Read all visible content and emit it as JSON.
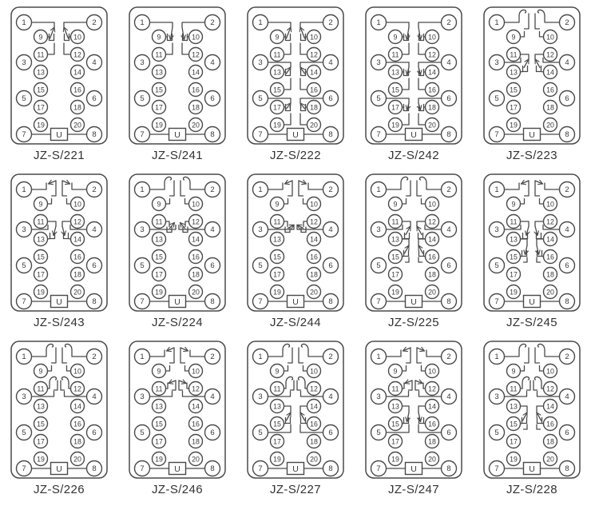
{
  "colors": {
    "line": "#4a4a4a",
    "text": "#3a3a3a",
    "background": "#ffffff"
  },
  "grid": {
    "rows": 3,
    "columns": 5
  },
  "terminals": {
    "outer_left": [
      "1",
      "3",
      "5",
      "7"
    ],
    "outer_right": [
      "2",
      "4",
      "6",
      "8"
    ],
    "inner_left": [
      "9",
      "11",
      "13",
      "15",
      "17",
      "19"
    ],
    "inner_right": [
      "10",
      "12",
      "14",
      "16",
      "18",
      "20"
    ],
    "power_box": "U"
  },
  "contact_types": {
    "no": "open-contact",
    "nc": "closed-contact"
  },
  "diagrams": [
    {
      "model": "JZ-S/221",
      "contacts": [
        {
          "slot": "gA",
          "type": "no"
        }
      ]
    },
    {
      "model": "JZ-S/241",
      "contacts": [
        {
          "slot": "gA",
          "type": "nc"
        }
      ]
    },
    {
      "model": "JZ-S/222",
      "contacts": [
        {
          "slot": "gA",
          "type": "no"
        },
        {
          "slot": "gB",
          "type": "no"
        },
        {
          "slot": "gC",
          "type": "no"
        }
      ]
    },
    {
      "model": "JZ-S/242",
      "contacts": [
        {
          "slot": "gA",
          "type": "nc"
        },
        {
          "slot": "gB",
          "type": "nc"
        },
        {
          "slot": "gC",
          "type": "nc"
        }
      ]
    },
    {
      "model": "JZ-S/223",
      "contacts": [
        {
          "slot": "T1",
          "type": "no"
        },
        {
          "slot": "M1a",
          "type": "no"
        }
      ]
    },
    {
      "model": "JZ-S/243",
      "contacts": [
        {
          "slot": "T1",
          "type": "nc"
        },
        {
          "slot": "M1a",
          "type": "nc"
        }
      ]
    },
    {
      "model": "JZ-S/224",
      "contacts": [
        {
          "slot": "T1",
          "type": "no"
        },
        {
          "slot": "M1b",
          "type": "no"
        }
      ]
    },
    {
      "model": "JZ-S/244",
      "contacts": [
        {
          "slot": "T1",
          "type": "nc"
        },
        {
          "slot": "M1b",
          "type": "nc"
        }
      ]
    },
    {
      "model": "JZ-S/225",
      "contacts": [
        {
          "slot": "T1",
          "type": "no"
        },
        {
          "slot": "M1a",
          "type": "no"
        },
        {
          "slot": "M2a",
          "type": "no"
        }
      ]
    },
    {
      "model": "JZ-S/245",
      "contacts": [
        {
          "slot": "T1",
          "type": "nc"
        },
        {
          "slot": "M1a",
          "type": "nc"
        },
        {
          "slot": "M2a",
          "type": "nc"
        }
      ]
    },
    {
      "model": "JZ-S/226",
      "contacts": [
        {
          "slot": "T1",
          "type": "no"
        },
        {
          "slot": "T2",
          "type": "no"
        }
      ]
    },
    {
      "model": "JZ-S/246",
      "contacts": [
        {
          "slot": "T1",
          "type": "nc"
        },
        {
          "slot": "T2",
          "type": "nc"
        }
      ]
    },
    {
      "model": "JZ-S/227",
      "contacts": [
        {
          "slot": "T1",
          "type": "no"
        },
        {
          "slot": "T2",
          "type": "no"
        },
        {
          "slot": "M2b",
          "type": "no"
        }
      ]
    },
    {
      "model": "JZ-S/247",
      "contacts": [
        {
          "slot": "T1",
          "type": "nc"
        },
        {
          "slot": "T2",
          "type": "nc"
        },
        {
          "slot": "M2b",
          "type": "nc"
        }
      ]
    },
    {
      "model": "JZ-S/228",
      "contacts": [
        {
          "slot": "T1",
          "type": "no"
        },
        {
          "slot": "T2",
          "type": "no"
        },
        {
          "slot": "M2a",
          "type": "no"
        }
      ]
    }
  ]
}
